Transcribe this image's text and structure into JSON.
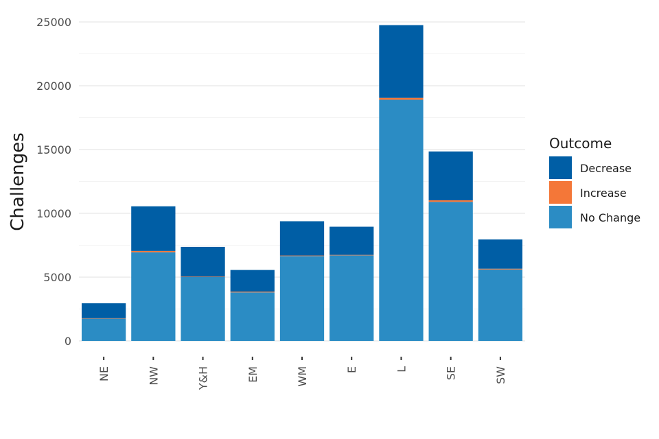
{
  "chart_data": {
    "type": "bar",
    "stacked": true,
    "title": "",
    "xlabel": "",
    "ylabel": "Challenges",
    "ylim": [
      0,
      25500
    ],
    "yticks": [
      0,
      5000,
      10000,
      15000,
      20000,
      25000
    ],
    "grid": true,
    "categories": [
      "NE",
      "NW",
      "Y&H",
      "EM",
      "WM",
      "E",
      "L",
      "SE",
      "SW"
    ],
    "series": [
      {
        "name": "No Change",
        "color": "#2b8cc4",
        "values": [
          1750,
          6950,
          5000,
          3800,
          6650,
          6700,
          18900,
          10900,
          5600
        ]
      },
      {
        "name": "Increase",
        "color": "#f47738",
        "values": [
          30,
          100,
          40,
          60,
          40,
          40,
          150,
          120,
          60
        ]
      },
      {
        "name": "Decrease",
        "color": "#005ea5",
        "values": [
          1170,
          3500,
          2330,
          1700,
          2690,
          2210,
          5700,
          3830,
          2290
        ]
      }
    ],
    "legend": {
      "title": "Outcome",
      "position": "right",
      "entries": [
        "Decrease",
        "Increase",
        "No Change"
      ]
    }
  }
}
